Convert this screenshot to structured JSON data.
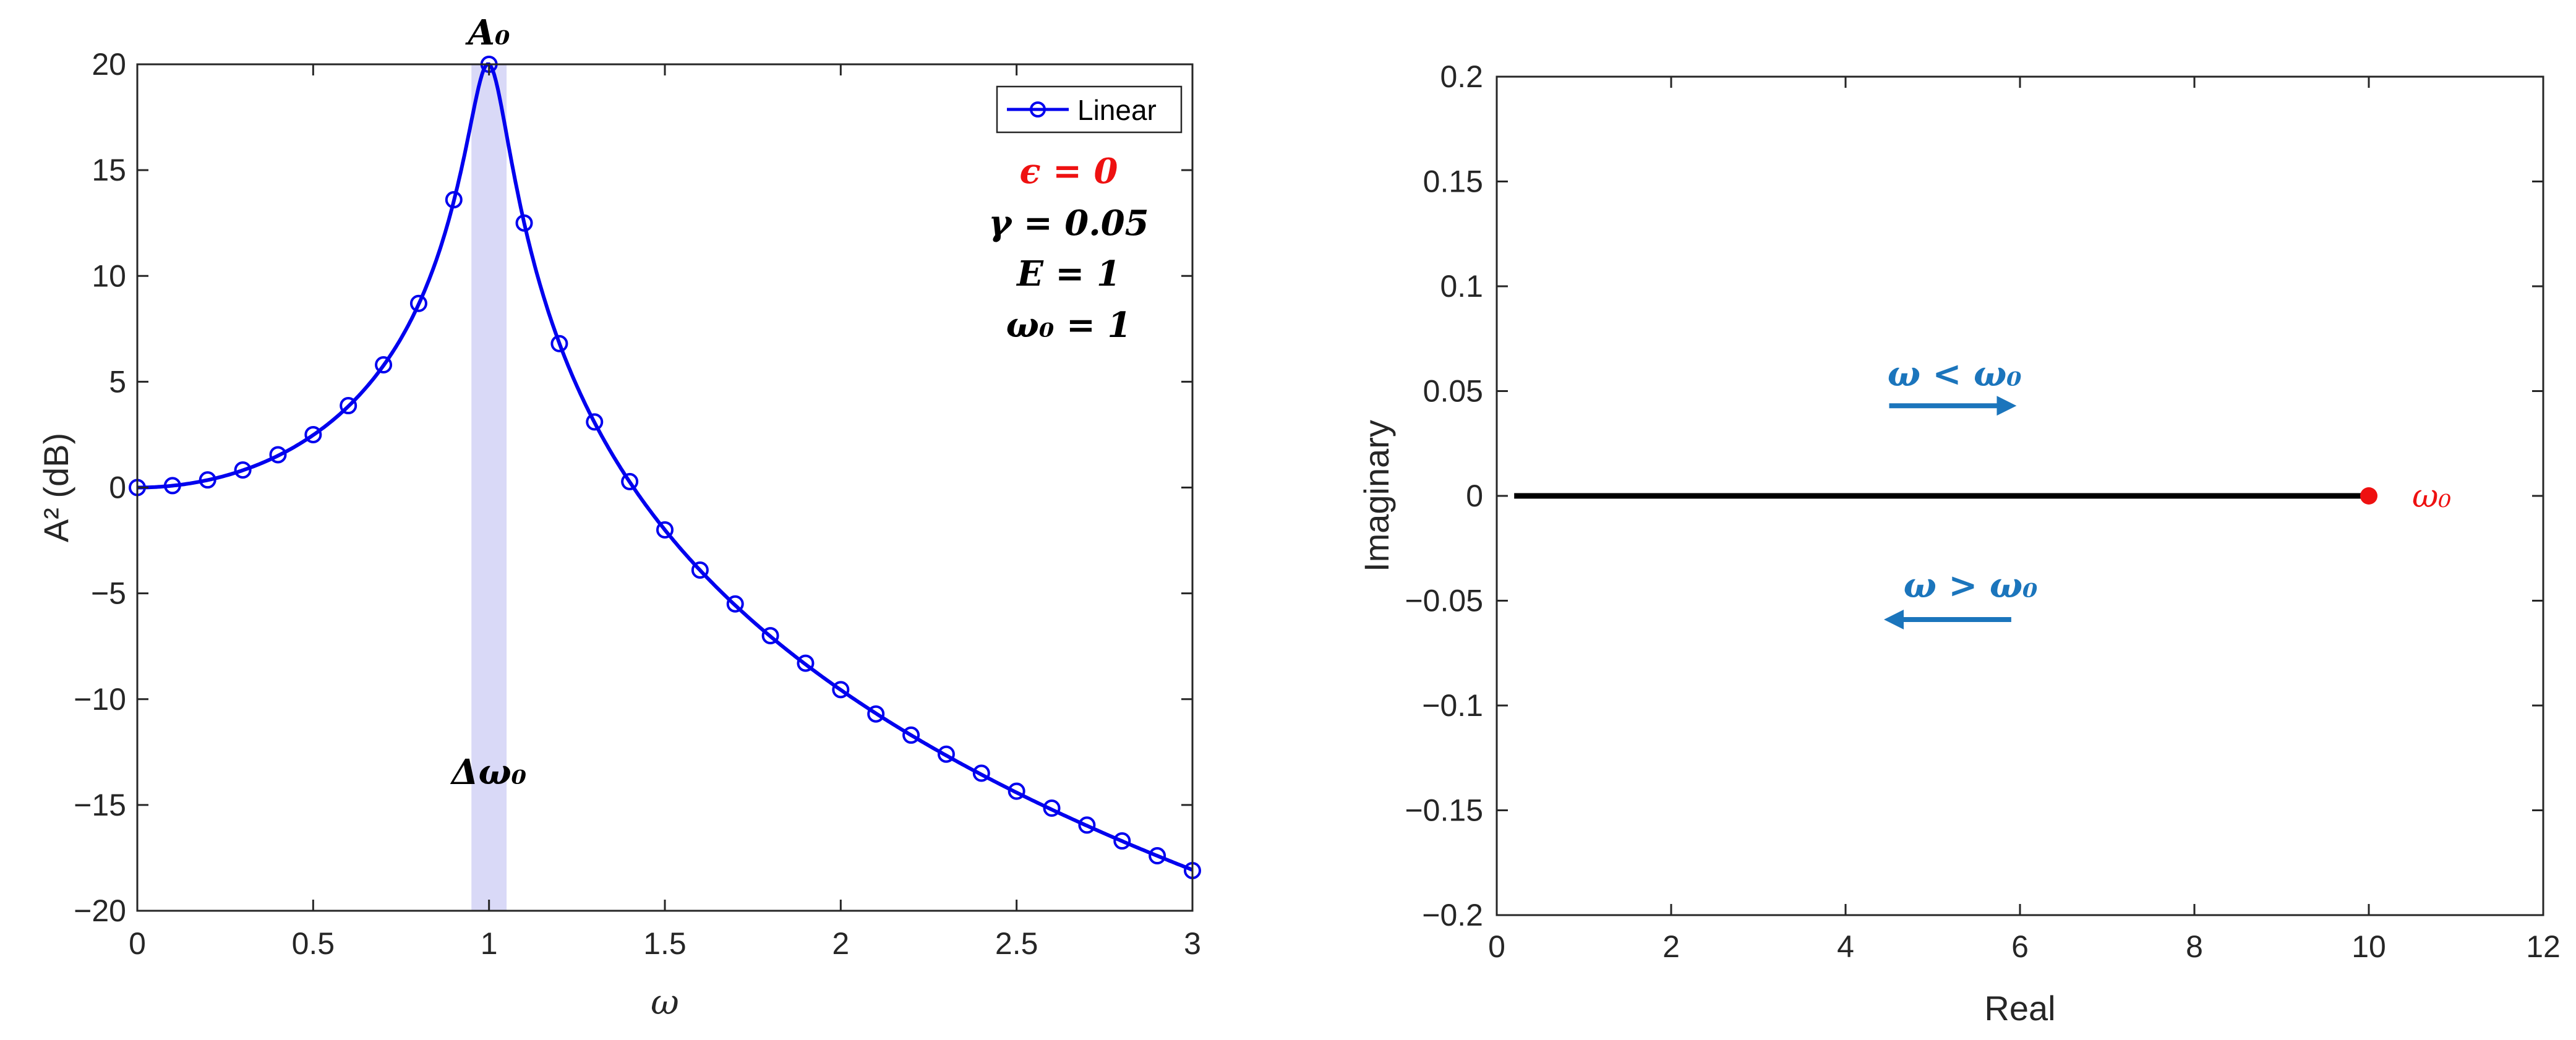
{
  "chart_data": [
    {
      "type": "line",
      "xlabel": "ω",
      "ylabel": "A² (dB)",
      "xlim": [
        0,
        3
      ],
      "ylim": [
        -20,
        20
      ],
      "xticks": [
        "0",
        "0.5",
        "1",
        "1.5",
        "2",
        "2.5",
        "3"
      ],
      "yticks": [
        "-20",
        "-15",
        "-10",
        "-5",
        "0",
        "5",
        "10",
        "15",
        "20"
      ],
      "legend": {
        "position": "top-right",
        "entries": [
          "Linear"
        ]
      },
      "series": [
        {
          "name": "Linear",
          "color": "#0000ee",
          "x": [
            0,
            0.1,
            0.2,
            0.3,
            0.4,
            0.5,
            0.6,
            0.7,
            0.8,
            0.9,
            1.0,
            1.1,
            1.2,
            1.3,
            1.4,
            1.5,
            1.6,
            1.7,
            1.8,
            1.9,
            2.0,
            2.1,
            2.2,
            2.3,
            2.4,
            2.5,
            2.6,
            2.7,
            2.8,
            2.9,
            3.0
          ],
          "y": [
            0,
            0.09,
            0.36,
            0.83,
            1.55,
            2.5,
            3.87,
            5.8,
            8.7,
            13.6,
            20.0,
            12.5,
            6.8,
            3.1,
            0.28,
            -2.0,
            -3.9,
            -5.5,
            -7.0,
            -8.3,
            -9.55,
            -10.7,
            -11.7,
            -12.6,
            -13.5,
            -14.35,
            -15.15,
            -15.95,
            -16.7,
            -17.4,
            -18.1
          ]
        }
      ],
      "shaded_band": {
        "x": [
          0.95,
          1.05
        ],
        "color": "#d9d9f7"
      },
      "annotations": {
        "peak": "A₀",
        "bandwidth": "Δω₀",
        "params": [
          "ϵ = 0",
          "γ = 0.05",
          "E = 1",
          "ω₀ = 1"
        ]
      },
      "grid": false
    },
    {
      "type": "line",
      "xlabel": "Real",
      "ylabel": "Imaginary",
      "xlim": [
        0,
        12
      ],
      "ylim": [
        -0.2,
        0.2
      ],
      "xticks": [
        "0",
        "2",
        "4",
        "6",
        "8",
        "10",
        "12"
      ],
      "yticks": [
        "-0.2",
        "-0.15",
        "-0.1",
        "-0.05",
        "0",
        "0.05",
        "0.1",
        "0.15",
        "0.2"
      ],
      "series": [
        {
          "color": "#000000",
          "x": [
            0.2,
            10
          ],
          "y": [
            0,
            0
          ]
        }
      ],
      "point": {
        "x": 10,
        "y": 0,
        "label": "ω₀",
        "color": "#ee1111"
      },
      "arrows": [
        {
          "label": "ω < ω₀",
          "direction": "right",
          "x": [
            4.5,
            6
          ],
          "y": 0.043,
          "color": "#1b75bc"
        },
        {
          "label": "ω > ω₀",
          "direction": "left",
          "x": [
            5.9,
            4.4
          ],
          "y": -0.059,
          "color": "#1b75bc"
        }
      ],
      "grid": false
    }
  ]
}
